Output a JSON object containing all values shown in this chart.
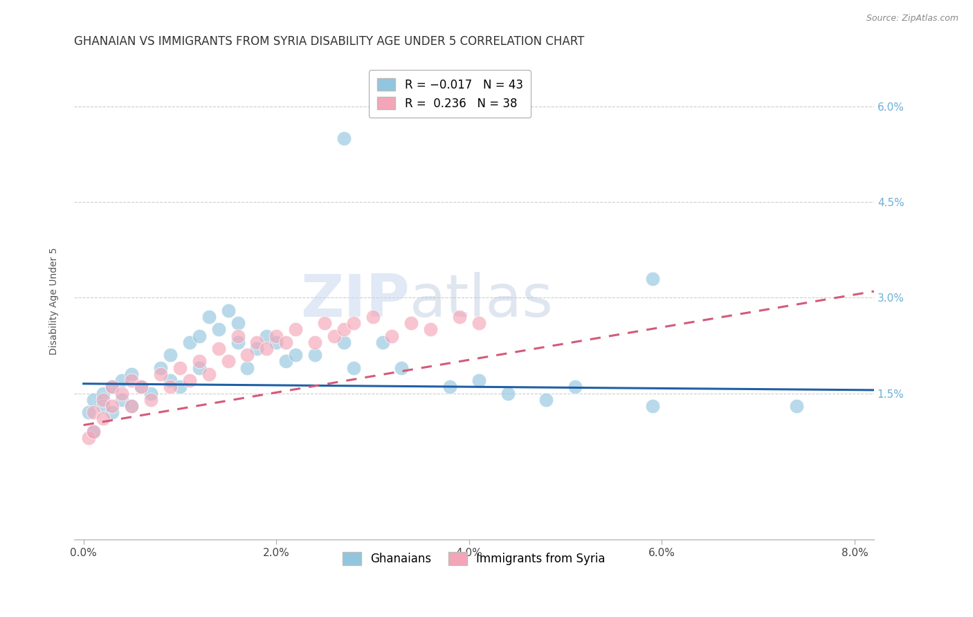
{
  "title": "GHANAIAN VS IMMIGRANTS FROM SYRIA DISABILITY AGE UNDER 5 CORRELATION CHART",
  "source": "Source: ZipAtlas.com",
  "ylabel": "Disability Age Under 5",
  "xlabel_ticks": [
    "0.0%",
    "2.0%",
    "4.0%",
    "6.0%",
    "8.0%"
  ],
  "ylabel_ticks_right": [
    "1.5%",
    "3.0%",
    "4.5%",
    "6.0%"
  ],
  "xlim": [
    -0.001,
    0.082
  ],
  "ylim": [
    -0.008,
    0.067
  ],
  "ytick_positions": [
    0.015,
    0.03,
    0.045,
    0.06
  ],
  "xtick_positions": [
    0.0,
    0.02,
    0.04,
    0.06,
    0.08
  ],
  "legend_blue_label": "Ghanaians",
  "legend_pink_label": "Immigrants from Syria",
  "R_blue": -0.017,
  "N_blue": 43,
  "R_pink": 0.236,
  "N_pink": 38,
  "blue_color": "#92c5de",
  "pink_color": "#f4a5b8",
  "blue_line_color": "#1f5fa6",
  "pink_line_color": "#d45a78",
  "watermark_left": "ZIP",
  "watermark_right": "atlas",
  "title_fontsize": 12,
  "axis_label_fontsize": 10,
  "tick_fontsize": 11,
  "blue_scatter_x": [
    0.0005,
    0.001,
    0.001,
    0.002,
    0.002,
    0.003,
    0.003,
    0.004,
    0.004,
    0.005,
    0.005,
    0.006,
    0.007,
    0.008,
    0.009,
    0.009,
    0.01,
    0.011,
    0.012,
    0.012,
    0.013,
    0.014,
    0.015,
    0.016,
    0.016,
    0.017,
    0.018,
    0.019,
    0.02,
    0.021,
    0.022,
    0.024,
    0.027,
    0.028,
    0.031,
    0.033,
    0.038,
    0.041,
    0.044,
    0.048,
    0.051,
    0.059,
    0.074
  ],
  "blue_scatter_y": [
    0.012,
    0.014,
    0.009,
    0.015,
    0.013,
    0.016,
    0.012,
    0.017,
    0.014,
    0.013,
    0.018,
    0.016,
    0.015,
    0.019,
    0.021,
    0.017,
    0.016,
    0.023,
    0.024,
    0.019,
    0.027,
    0.025,
    0.028,
    0.026,
    0.023,
    0.019,
    0.022,
    0.024,
    0.023,
    0.02,
    0.021,
    0.021,
    0.023,
    0.019,
    0.023,
    0.019,
    0.016,
    0.017,
    0.015,
    0.014,
    0.016,
    0.013,
    0.013
  ],
  "blue_outlier_x": [
    0.027
  ],
  "blue_outlier_y": [
    0.055
  ],
  "blue_outlier2_x": [
    0.059
  ],
  "blue_outlier2_y": [
    0.033
  ],
  "pink_scatter_x": [
    0.0005,
    0.001,
    0.001,
    0.002,
    0.002,
    0.003,
    0.003,
    0.004,
    0.005,
    0.005,
    0.006,
    0.007,
    0.008,
    0.009,
    0.01,
    0.011,
    0.012,
    0.013,
    0.014,
    0.015,
    0.016,
    0.017,
    0.018,
    0.019,
    0.02,
    0.021,
    0.022,
    0.024,
    0.025,
    0.026,
    0.027,
    0.028,
    0.03,
    0.032,
    0.034,
    0.036,
    0.039,
    0.041
  ],
  "pink_scatter_y": [
    0.008,
    0.012,
    0.009,
    0.014,
    0.011,
    0.016,
    0.013,
    0.015,
    0.017,
    0.013,
    0.016,
    0.014,
    0.018,
    0.016,
    0.019,
    0.017,
    0.02,
    0.018,
    0.022,
    0.02,
    0.024,
    0.021,
    0.023,
    0.022,
    0.024,
    0.023,
    0.025,
    0.023,
    0.026,
    0.024,
    0.025,
    0.026,
    0.027,
    0.024,
    0.026,
    0.025,
    0.027,
    0.026
  ],
  "blue_line_x0": 0.0,
  "blue_line_x1": 0.082,
  "blue_line_y0": 0.0165,
  "blue_line_y1": 0.0155,
  "pink_line_x0": 0.0,
  "pink_line_x1": 0.082,
  "pink_line_y0": 0.01,
  "pink_line_y1": 0.031
}
